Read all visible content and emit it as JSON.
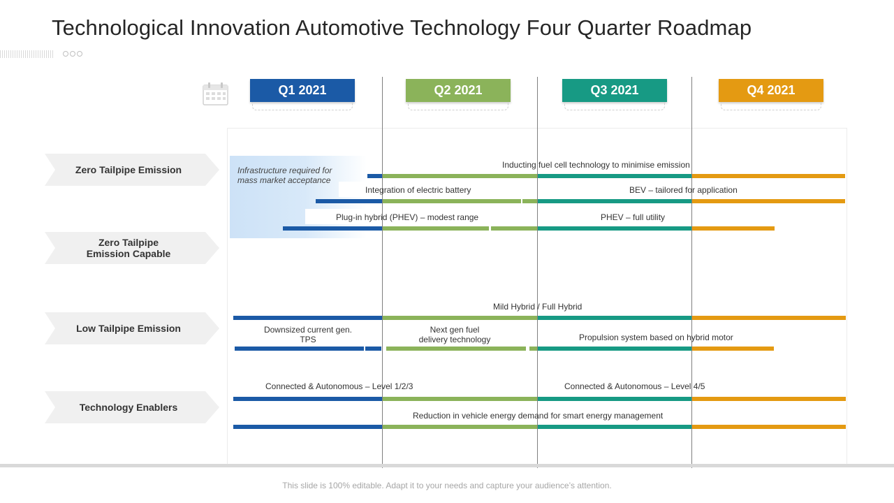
{
  "title": "Technological Innovation Automotive Technology Four Quarter Roadmap",
  "colors": {
    "q1": "#1b5aa6",
    "q2": "#8bb35a",
    "q3": "#179a84",
    "q4": "#e49a12"
  },
  "quarters": [
    "Q1 2021",
    "Q2 2021",
    "Q3 2021",
    "Q4 2021"
  ],
  "rows": [
    {
      "line1": "Zero Tailpipe Emission",
      "line2": ""
    },
    {
      "line1": "Zero Tailpipe",
      "line2": "Emission Capable"
    },
    {
      "line1": "Low Tailpipe Emission",
      "line2": ""
    },
    {
      "line1": "Technology Enablers",
      "line2": ""
    }
  ],
  "infrastructure_note": "Infrastructure required for mass market acceptance",
  "bar_labels": {
    "fuel_cell": "Inducting fuel cell technology to minimise emission",
    "electric_battery": "Integration of electric battery",
    "bev": "BEV – tailored for application",
    "phev_modest": "Plug-in hybrid (PHEV) – modest range",
    "phev_full": "PHEV – full utility",
    "mild_hybrid": "Mild Hybrid / Full Hybrid",
    "downsized_1": "Downsized current gen.",
    "downsized_2": "TPS",
    "next_gen_1": "Next gen fuel",
    "next_gen_2": "delivery technology",
    "propulsion": "Propulsion system based on hybrid motor",
    "connected_123": "Connected & Autonomous – Level 1/2/3",
    "connected_45": "Connected & Autonomous – Level 4/5",
    "energy_reduction": "Reduction in vehicle energy demand for smart energy management"
  },
  "footer": "This slide is 100% editable. Adapt it to your needs and capture your audience’s attention."
}
